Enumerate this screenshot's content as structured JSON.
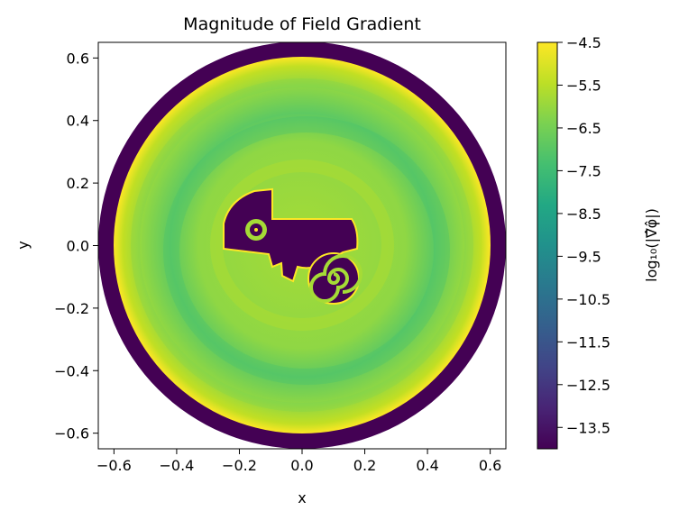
{
  "chart_data": {
    "type": "heatmap",
    "title": "Magnitude of Field Gradient",
    "xlabel": "x",
    "ylabel": "y",
    "xlim": [
      -0.65,
      0.65
    ],
    "ylim": [
      -0.65,
      0.65
    ],
    "xticks": [
      "−0.6",
      "−0.4",
      "−0.2",
      "0.0",
      "0.2",
      "0.4",
      "0.6"
    ],
    "yticks": [
      "−0.6",
      "−0.4",
      "−0.2",
      "0.0",
      "0.2",
      "0.4",
      "0.6"
    ],
    "xtick_values": [
      -0.6,
      -0.4,
      -0.2,
      0.0,
      0.2,
      0.4,
      0.6
    ],
    "ytick_values": [
      -0.6,
      -0.4,
      -0.2,
      0.0,
      0.2,
      0.4,
      0.6
    ],
    "colorbar": {
      "label": "log₁₀(|∇̂φ̂|)",
      "range": [
        -14,
        -4.5
      ],
      "ticks": [
        "−4.5",
        "−5.5",
        "−6.5",
        "−7.5",
        "−8.5",
        "−9.5",
        "−10.5",
        "−11.5",
        "−12.5",
        "−13.5"
      ],
      "tick_values": [
        -4.5,
        -5.5,
        -6.5,
        -7.5,
        -8.5,
        -9.5,
        -10.5,
        -11.5,
        -12.5,
        -13.5
      ],
      "colormap": "viridis"
    },
    "domain": {
      "inner_radius": 0.6,
      "outer_radius": 0.65,
      "outer_ring_value": -13.8,
      "field_range": [
        -6.8,
        -4.7
      ]
    }
  }
}
